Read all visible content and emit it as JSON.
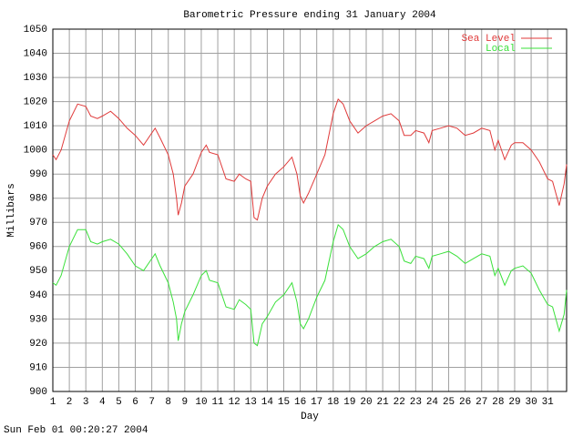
{
  "chart_data": {
    "type": "line",
    "title": "Barometric Pressure ending 31 January 2004",
    "x_label": "Day",
    "y_label": "Millibars",
    "timestamp": "Sun Feb 01 00:20:27 2004",
    "xlim": [
      1,
      32.15
    ],
    "xticks": [
      1,
      2,
      3,
      4,
      5,
      6,
      7,
      8,
      9,
      10,
      11,
      12,
      13,
      14,
      15,
      16,
      17,
      18,
      19,
      20,
      21,
      22,
      23,
      24,
      25,
      26,
      27,
      28,
      29,
      30,
      31
    ],
    "ylim": [
      900,
      1050
    ],
    "yticks": [
      900,
      910,
      920,
      930,
      940,
      950,
      960,
      970,
      980,
      990,
      1000,
      1010,
      1020,
      1030,
      1040,
      1050
    ],
    "grid": true,
    "legend": "top-right",
    "x": [
      1,
      1.2,
      1.5,
      2,
      2.5,
      3,
      3.3,
      3.7,
      4,
      4.5,
      5,
      5.5,
      6,
      6.5,
      7,
      7.2,
      7.5,
      8,
      8.3,
      8.5,
      8.6,
      8.8,
      9,
      9.5,
      10,
      10.3,
      10.5,
      11,
      11.5,
      12,
      12.3,
      12.7,
      13,
      13.2,
      13.4,
      13.7,
      14,
      14.5,
      15,
      15.5,
      15.8,
      16,
      16.2,
      16.5,
      17,
      17.5,
      18,
      18.3,
      18.6,
      19,
      19.5,
      20,
      20.5,
      21,
      21.5,
      22,
      22.3,
      22.7,
      23,
      23.5,
      23.8,
      24,
      24.5,
      25,
      25.5,
      26,
      26.5,
      27,
      27.5,
      27.8,
      28,
      28.4,
      28.8,
      29,
      29.5,
      30,
      30.5,
      31,
      31.3,
      31.7,
      32,
      32.15
    ],
    "series": [
      {
        "name": "Sea Level",
        "color": "#e03a3a",
        "values": [
          998,
          996,
          1000,
          1012,
          1019,
          1018,
          1014,
          1013,
          1014,
          1016,
          1013,
          1009,
          1006,
          1002,
          1007,
          1009,
          1005,
          998,
          990,
          980,
          973,
          978,
          985,
          990,
          999,
          1002,
          999,
          998,
          988,
          987,
          990,
          988,
          987,
          972,
          971,
          980,
          985,
          990,
          993,
          997,
          990,
          981,
          978,
          982,
          990,
          998,
          1015,
          1021,
          1019,
          1012,
          1007,
          1010,
          1012,
          1014,
          1015,
          1012,
          1006,
          1006,
          1008,
          1007,
          1003,
          1008,
          1009,
          1010,
          1009,
          1006,
          1007,
          1009,
          1008,
          1000,
          1004,
          996,
          1002,
          1003,
          1003,
          1000,
          995,
          988,
          987,
          977,
          986,
          994
        ]
      },
      {
        "name": "Local",
        "color": "#3ae03a",
        "values": [
          945,
          944,
          948,
          960,
          967,
          967,
          962,
          961,
          962,
          963,
          961,
          957,
          952,
          950,
          955,
          957,
          952,
          945,
          937,
          930,
          921,
          928,
          933,
          940,
          948,
          950,
          946,
          945,
          935,
          934,
          938,
          936,
          934,
          920,
          919,
          928,
          931,
          937,
          940,
          945,
          937,
          928,
          926,
          930,
          939,
          946,
          962,
          969,
          967,
          960,
          955,
          957,
          960,
          962,
          963,
          960,
          954,
          953,
          956,
          955,
          951,
          956,
          957,
          958,
          956,
          953,
          955,
          957,
          956,
          948,
          951,
          944,
          950,
          951,
          952,
          949,
          942,
          936,
          935,
          925,
          932,
          942
        ]
      }
    ]
  }
}
